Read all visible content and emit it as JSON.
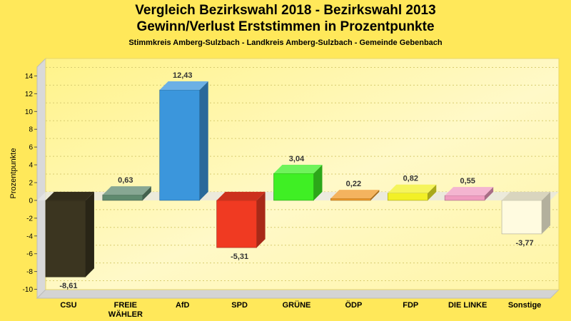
{
  "chart_data": {
    "type": "bar",
    "title": "Vergleich Bezirkswahl 2018 - Bezirkswahl 2013",
    "subtitle_line": "Gewinn/Verlust Erststimmen in Prozentpunkte",
    "region": "Stimmkreis Amberg-Sulzbach - Landkreis Amberg-Sulzbach - Gemeinde Gebenbach",
    "ylabel": "Prozentpunkte",
    "xlabel": "",
    "ylim": [
      -11,
      15
    ],
    "yticks": [
      "14",
      "12",
      "10",
      "8",
      "6",
      "4",
      "2",
      "0",
      "-2",
      "-4",
      "-6",
      "-8",
      "-10"
    ],
    "grid": true,
    "categories": [
      "CSU",
      "FREIE WÄHLER",
      "AfD",
      "SPD",
      "GRÜNE",
      "ÖDP",
      "FDP",
      "DIE LINKE",
      "Sonstige"
    ],
    "category_lines": [
      [
        "CSU"
      ],
      [
        "FREIE",
        "WÄHLER"
      ],
      [
        "AfD"
      ],
      [
        "SPD"
      ],
      [
        "GRÜNE"
      ],
      [
        "ÖDP"
      ],
      [
        "FDP"
      ],
      [
        "DIE LINKE"
      ],
      [
        "Sonstige"
      ]
    ],
    "values": [
      -8.61,
      0.63,
      12.43,
      -5.31,
      3.04,
      0.22,
      0.82,
      0.55,
      -3.77
    ],
    "labels": [
      "-8,61",
      "0,63",
      "12,43",
      "-5,31",
      "3,04",
      "0,22",
      "0,82",
      "0,55",
      "-3,77"
    ],
    "colors": [
      "#3b3520",
      "#5f8a6f",
      "#3b96dc",
      "#f03a22",
      "#3fef24",
      "#f09a2a",
      "#f2f026",
      "#f09cc0",
      "#fffbe0"
    ]
  }
}
